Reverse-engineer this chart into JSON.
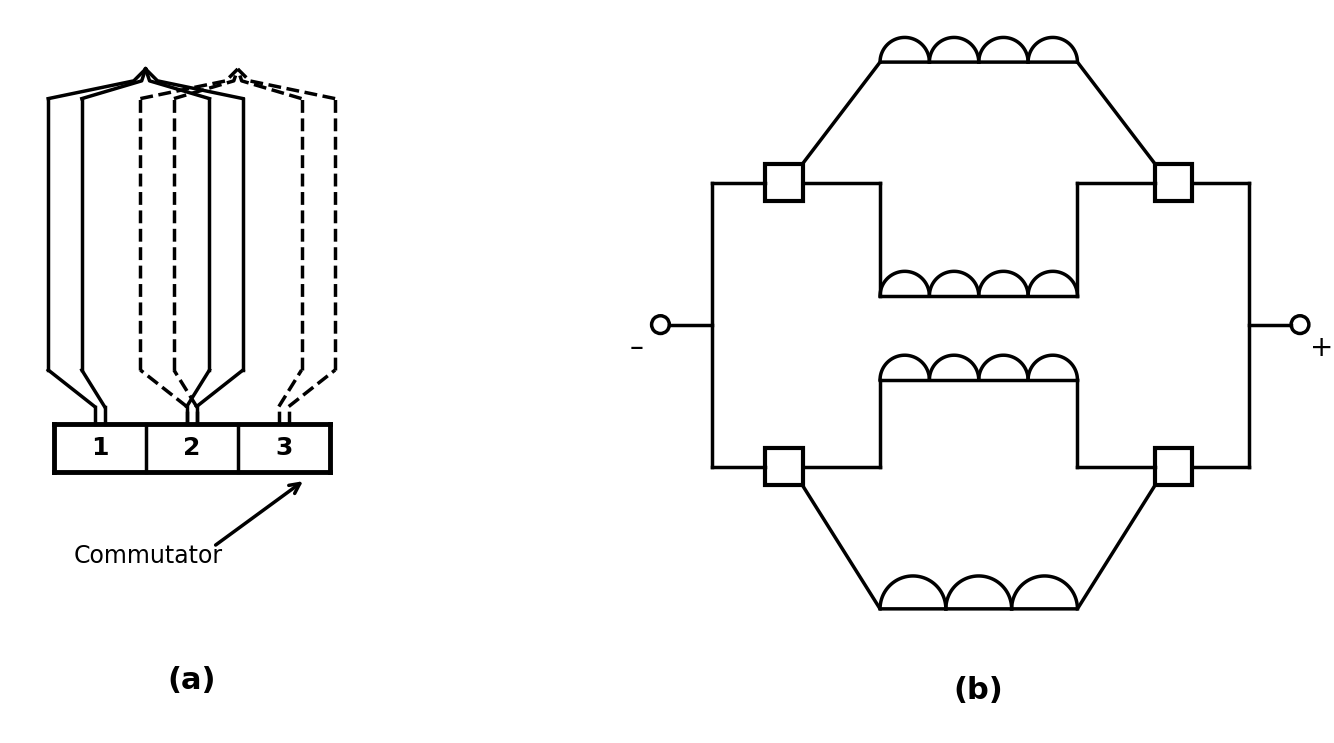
{
  "bg_color": "#ffffff",
  "line_color": "#000000",
  "line_width": 2.5,
  "title_a": "(a)",
  "title_b": "(b)",
  "commutator_label": "Commutator"
}
